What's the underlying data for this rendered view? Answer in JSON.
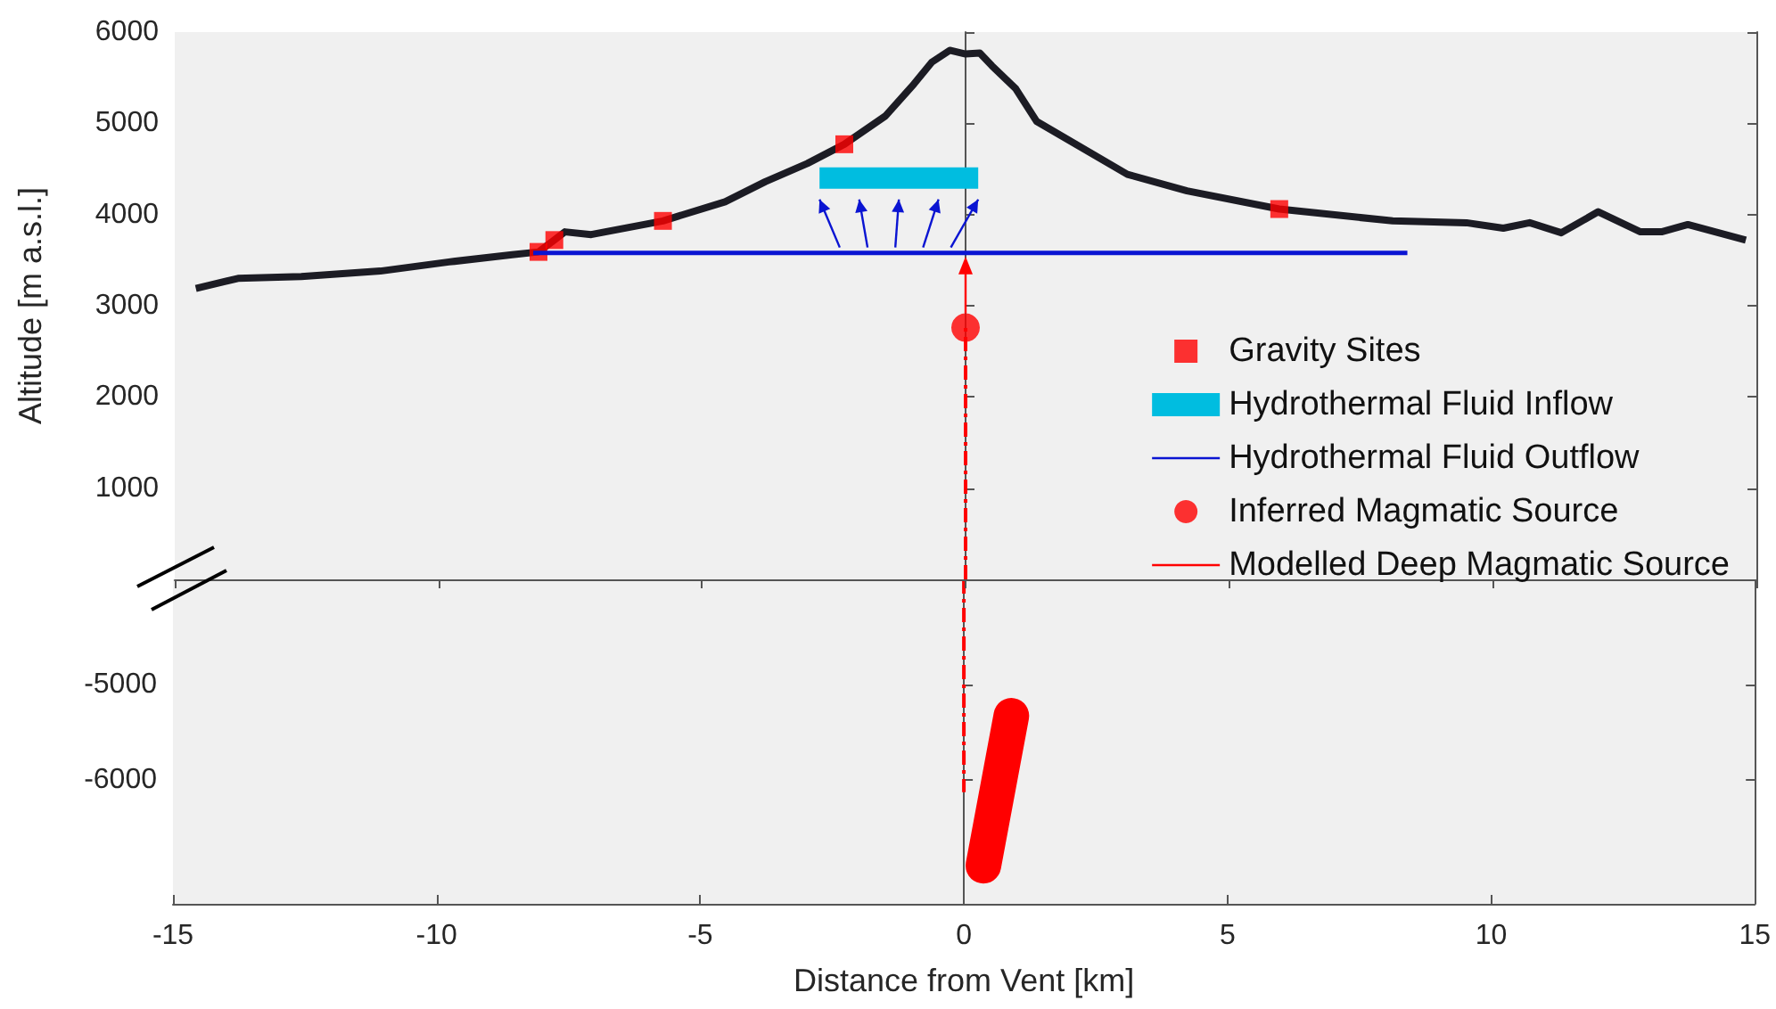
{
  "chart_data": [
    {
      "type": "line",
      "ylabel": "Altitude [m a.s.l.]",
      "xlim": [
        -15,
        15
      ],
      "xticks": [
        -15,
        -10,
        -5,
        0,
        5,
        10,
        15
      ],
      "ylim": [
        0,
        6000
      ],
      "yticks": [
        1000,
        2000,
        3000,
        4000,
        5000,
        6000
      ],
      "tick_labels": "y",
      "legend": "bottom right",
      "series": [
        {
          "type": "line",
          "color": "#1c1c24",
          "marker": "none",
          "line_style": "solid",
          "x": [
            -14.6,
            -13.8,
            -12.6,
            -11.1,
            -9.8,
            -8.6,
            -8.1,
            -7.8,
            -7.6,
            -7.1,
            -5.74,
            -4.56,
            -3.8,
            -3.0,
            -2.3,
            -1.52,
            -0.98,
            -0.64,
            -0.3,
            0,
            0.27,
            0.5,
            0.95,
            1.35,
            3.07,
            4.2,
            5.95,
            8.1,
            9.5,
            10.2,
            10.7,
            11.3,
            12.0,
            12.8,
            13.2,
            13.7,
            14.8
          ],
          "values": [
            3190,
            3300,
            3320,
            3380,
            3480,
            3560,
            3590,
            3720,
            3810,
            3780,
            3930,
            4140,
            4360,
            4560,
            4770,
            5080,
            5430,
            5670,
            5800,
            5760,
            5770,
            5630,
            5380,
            5020,
            4440,
            4260,
            4060,
            3930,
            3910,
            3850,
            3910,
            3800,
            4030,
            3810,
            3810,
            3890,
            3720
          ]
        },
        {
          "name": "Gravity Sites",
          "type": "scatter",
          "color": "#ff0000",
          "marker": "square",
          "x": [
            -8.1,
            -7.8,
            -5.74,
            -2.3,
            5.95
          ],
          "values": [
            3590,
            3720,
            3930,
            4770,
            4060
          ]
        },
        {
          "name": "Hydrothermal Fluid Inflow",
          "type": "line",
          "color": "#00bde0",
          "marker": "none",
          "line_style": "solid",
          "x": [
            -2.77,
            0.24
          ],
          "values": [
            4400,
            4400
          ]
        },
        {
          "name": "Hydrothermal Fluid Outflow",
          "type": "line",
          "color": "#0a14d2",
          "marker": "none",
          "line_style": "solid",
          "x": [
            -8.2,
            8.38
          ],
          "values": [
            3580,
            3580
          ]
        },
        {
          "name": "Inferred Magmatic Source",
          "type": "scatter",
          "color": "#ff0000",
          "marker": "circle",
          "x": [
            0
          ],
          "values": [
            2760
          ]
        },
        {
          "name": "Modelled Deep Magmatic Source",
          "type": "line",
          "color": "#ff0000",
          "marker": "none",
          "line_style": "dashed",
          "x": [
            0,
            0
          ],
          "values": [
            0,
            2760
          ]
        }
      ]
    },
    {
      "type": "line",
      "xlabel": "Distance from Vent [km]",
      "xlim": [
        -15,
        15
      ],
      "xticks": [
        -15,
        -10,
        -5,
        0,
        5,
        10,
        15
      ],
      "ylim": [
        -7300,
        -3900
      ],
      "yticks": [
        -6000,
        -5000
      ],
      "series": [
        {
          "type": "line",
          "color": "#ff0000",
          "marker": "none",
          "line_style": "dashed",
          "x": [
            0,
            0
          ],
          "values": [
            -3900,
            -6130
          ]
        },
        {
          "type": "line",
          "color": "#ff0000",
          "marker": "none",
          "line_style": "solid",
          "x": [
            0.37,
            0.9
          ],
          "values": [
            -6900,
            -5330
          ]
        }
      ]
    }
  ]
}
